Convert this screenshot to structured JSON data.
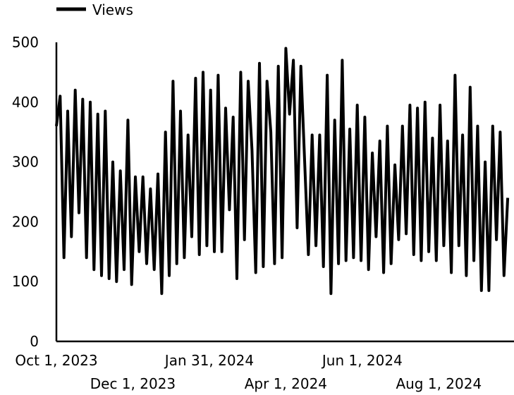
{
  "chart_data": {
    "type": "line",
    "title": "",
    "xlabel": "",
    "ylabel": "",
    "x_range": [
      "2023-10-01",
      "2024-09-30"
    ],
    "ylim": [
      0,
      500
    ],
    "yticks": [
      0,
      100,
      200,
      300,
      400,
      500
    ],
    "x_ticks": [
      {
        "date": "2023-10-01",
        "label": "Oct 1, 2023"
      },
      {
        "date": "2023-12-01",
        "label": "Dec 1, 2023"
      },
      {
        "date": "2024-01-31",
        "label": "Jan 31, 2024"
      },
      {
        "date": "2024-04-01",
        "label": "Apr 1, 2024"
      },
      {
        "date": "2024-06-01",
        "label": "Jun 1, 2024"
      },
      {
        "date": "2024-08-01",
        "label": "Aug 1, 2024"
      }
    ],
    "grid": false,
    "legend_position": "top-left",
    "series": [
      {
        "name": "Views",
        "color": "#000000",
        "points": [
          [
            "2023-10-01",
            360
          ],
          [
            "2023-10-04",
            410
          ],
          [
            "2023-10-07",
            140
          ],
          [
            "2023-10-10",
            385
          ],
          [
            "2023-10-13",
            175
          ],
          [
            "2023-10-16",
            420
          ],
          [
            "2023-10-19",
            215
          ],
          [
            "2023-10-22",
            405
          ],
          [
            "2023-10-25",
            140
          ],
          [
            "2023-10-28",
            400
          ],
          [
            "2023-10-31",
            120
          ],
          [
            "2023-11-03",
            380
          ],
          [
            "2023-11-06",
            110
          ],
          [
            "2023-11-09",
            385
          ],
          [
            "2023-11-12",
            105
          ],
          [
            "2023-11-15",
            300
          ],
          [
            "2023-11-18",
            100
          ],
          [
            "2023-11-21",
            285
          ],
          [
            "2023-11-24",
            120
          ],
          [
            "2023-11-27",
            370
          ],
          [
            "2023-11-30",
            95
          ],
          [
            "2023-12-03",
            275
          ],
          [
            "2023-12-06",
            150
          ],
          [
            "2023-12-09",
            275
          ],
          [
            "2023-12-12",
            130
          ],
          [
            "2023-12-15",
            255
          ],
          [
            "2023-12-18",
            120
          ],
          [
            "2023-12-21",
            280
          ],
          [
            "2023-12-24",
            80
          ],
          [
            "2023-12-27",
            350
          ],
          [
            "2023-12-30",
            110
          ],
          [
            "2024-01-02",
            435
          ],
          [
            "2024-01-05",
            130
          ],
          [
            "2024-01-08",
            385
          ],
          [
            "2024-01-11",
            140
          ],
          [
            "2024-01-14",
            345
          ],
          [
            "2024-01-17",
            175
          ],
          [
            "2024-01-20",
            440
          ],
          [
            "2024-01-23",
            145
          ],
          [
            "2024-01-26",
            450
          ],
          [
            "2024-01-29",
            160
          ],
          [
            "2024-02-01",
            420
          ],
          [
            "2024-02-04",
            150
          ],
          [
            "2024-02-07",
            445
          ],
          [
            "2024-02-10",
            150
          ],
          [
            "2024-02-13",
            390
          ],
          [
            "2024-02-16",
            220
          ],
          [
            "2024-02-19",
            375
          ],
          [
            "2024-02-22",
            105
          ],
          [
            "2024-02-25",
            450
          ],
          [
            "2024-02-28",
            170
          ],
          [
            "2024-03-02",
            435
          ],
          [
            "2024-03-05",
            320
          ],
          [
            "2024-03-08",
            115
          ],
          [
            "2024-03-11",
            465
          ],
          [
            "2024-03-14",
            125
          ],
          [
            "2024-03-17",
            435
          ],
          [
            "2024-03-20",
            350
          ],
          [
            "2024-03-23",
            130
          ],
          [
            "2024-03-26",
            460
          ],
          [
            "2024-03-29",
            140
          ],
          [
            "2024-04-01",
            490
          ],
          [
            "2024-04-04",
            380
          ],
          [
            "2024-04-07",
            470
          ],
          [
            "2024-04-10",
            190
          ],
          [
            "2024-04-13",
            460
          ],
          [
            "2024-04-16",
            300
          ],
          [
            "2024-04-19",
            145
          ],
          [
            "2024-04-22",
            345
          ],
          [
            "2024-04-25",
            160
          ],
          [
            "2024-04-28",
            345
          ],
          [
            "2024-05-01",
            125
          ],
          [
            "2024-05-04",
            445
          ],
          [
            "2024-05-07",
            80
          ],
          [
            "2024-05-10",
            370
          ],
          [
            "2024-05-13",
            130
          ],
          [
            "2024-05-16",
            470
          ],
          [
            "2024-05-19",
            135
          ],
          [
            "2024-05-22",
            355
          ],
          [
            "2024-05-25",
            140
          ],
          [
            "2024-05-28",
            395
          ],
          [
            "2024-05-31",
            135
          ],
          [
            "2024-06-03",
            375
          ],
          [
            "2024-06-06",
            120
          ],
          [
            "2024-06-09",
            315
          ],
          [
            "2024-06-12",
            175
          ],
          [
            "2024-06-15",
            335
          ],
          [
            "2024-06-18",
            115
          ],
          [
            "2024-06-21",
            360
          ],
          [
            "2024-06-24",
            130
          ],
          [
            "2024-06-27",
            295
          ],
          [
            "2024-06-30",
            170
          ],
          [
            "2024-07-03",
            360
          ],
          [
            "2024-07-06",
            180
          ],
          [
            "2024-07-09",
            395
          ],
          [
            "2024-07-12",
            145
          ],
          [
            "2024-07-15",
            390
          ],
          [
            "2024-07-18",
            135
          ],
          [
            "2024-07-21",
            400
          ],
          [
            "2024-07-24",
            150
          ],
          [
            "2024-07-27",
            340
          ],
          [
            "2024-07-30",
            135
          ],
          [
            "2024-08-02",
            395
          ],
          [
            "2024-08-05",
            160
          ],
          [
            "2024-08-08",
            335
          ],
          [
            "2024-08-11",
            115
          ],
          [
            "2024-08-14",
            445
          ],
          [
            "2024-08-17",
            160
          ],
          [
            "2024-08-20",
            345
          ],
          [
            "2024-08-23",
            110
          ],
          [
            "2024-08-26",
            425
          ],
          [
            "2024-08-29",
            135
          ],
          [
            "2024-09-01",
            360
          ],
          [
            "2024-09-04",
            85
          ],
          [
            "2024-09-07",
            300
          ],
          [
            "2024-09-10",
            85
          ],
          [
            "2024-09-13",
            360
          ],
          [
            "2024-09-16",
            170
          ],
          [
            "2024-09-19",
            350
          ],
          [
            "2024-09-22",
            110
          ],
          [
            "2024-09-25",
            240
          ]
        ]
      }
    ]
  }
}
